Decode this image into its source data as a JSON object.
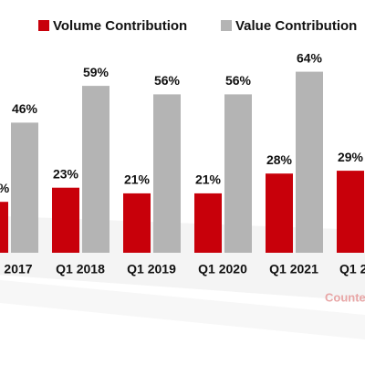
{
  "chart_data": {
    "type": "bar",
    "categories": [
      "2017",
      "Q1 2018",
      "Q1 2019",
      "Q1 2020",
      "Q1 2021",
      "Q1 2"
    ],
    "series": [
      {
        "name": "Volume Contribution",
        "color": "#c8000a",
        "values": [
          18,
          23,
          21,
          21,
          28,
          29
        ],
        "value_labels": [
          "%",
          "23%",
          "21%",
          "21%",
          "28%",
          "29%"
        ]
      },
      {
        "name": "Value Contribution",
        "color": "#b4b4b4",
        "values": [
          46,
          59,
          56,
          56,
          64,
          null
        ],
        "value_labels": [
          "46%",
          "59%",
          "56%",
          "56%",
          "64%",
          null
        ]
      }
    ],
    "ylim": [
      0,
      70
    ],
    "watermark": "Counterp"
  }
}
